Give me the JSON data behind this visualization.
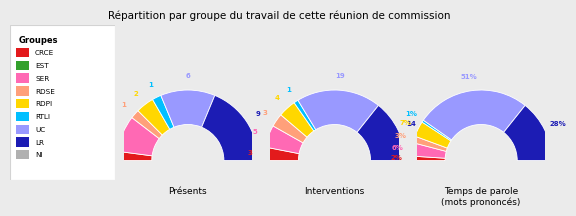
{
  "title": "Répartition par groupe du travail de cette réunion de commission",
  "groups": [
    "CRCE",
    "EST",
    "SER",
    "RDSE",
    "RDPI",
    "RTLI",
    "UC",
    "LR",
    "NI"
  ],
  "colors": [
    "#e31a1c",
    "#33a02c",
    "#ff69b4",
    "#ffa07a",
    "#ffd700",
    "#00bfff",
    "#9999ff",
    "#1c1cb4",
    "#b0b0b0"
  ],
  "presents": [
    1,
    0,
    4,
    1,
    2,
    1,
    6,
    9,
    0
  ],
  "interventions": [
    3,
    0,
    5,
    3,
    4,
    1,
    19,
    14,
    0
  ],
  "temps": [
    2,
    0,
    6,
    3,
    7,
    1,
    51,
    28,
    0
  ],
  "chart_titles": [
    "Présents",
    "Interventions",
    "Temps de parole\n(mots prononcés)"
  ],
  "legend_title": "Groupes",
  "background_color": "#ebebeb",
  "label_colors": [
    "#e31a1c",
    "#33a02c",
    "#ff69b4",
    "#ffa07a",
    "#ffd700",
    "#00bfff",
    "#9999ff",
    "#1c1cb4",
    "#b0b0b0"
  ]
}
